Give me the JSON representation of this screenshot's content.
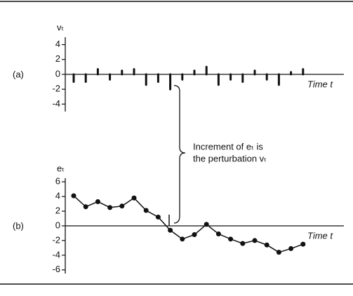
{
  "chart_data": [
    {
      "type": "spike",
      "panel_label": "(a)",
      "ylabel": "vₜ",
      "xlabel": "Time t",
      "categories": [
        null,
        null,
        null,
        null,
        null,
        null,
        null,
        null,
        null,
        null,
        null,
        null,
        null,
        null,
        null,
        null,
        null,
        null,
        null,
        null
      ],
      "values": [
        -1,
        -1,
        0.7,
        -0.7,
        0.5,
        0.7,
        -1.4,
        -1,
        -2,
        -0.7,
        0.5,
        1,
        -1.4,
        -0.7,
        -1,
        0.5,
        -0.7,
        -1.4,
        0.3,
        0.7
      ],
      "color": "#111",
      "ylim": [
        -5,
        5
      ],
      "yticks": [
        4,
        2,
        0,
        -2,
        -4
      ]
    },
    {
      "type": "line",
      "panel_label": "(b)",
      "ylabel": "eₜ",
      "xlabel": "Time t",
      "categories": [
        null,
        null,
        null,
        null,
        null,
        null,
        null,
        null,
        null,
        null,
        null,
        null,
        null,
        null,
        null,
        null,
        null,
        null,
        null,
        null
      ],
      "values": [
        4.1,
        2.6,
        3.3,
        2.5,
        2.7,
        3.8,
        2.1,
        1.2,
        -0.6,
        -1.8,
        -1.2,
        0.2,
        -1.1,
        -1.8,
        -2.4,
        -2.0,
        -2.6,
        -3.6,
        -3.1,
        -2.5
      ],
      "color": "#111",
      "ylim": [
        -6.5,
        6.5
      ],
      "yticks": [
        6,
        4,
        2,
        0,
        -2,
        -4,
        -6
      ]
    }
  ],
  "annotation": [
    "Increment of eₜ is",
    "the perturbation vₜ"
  ]
}
